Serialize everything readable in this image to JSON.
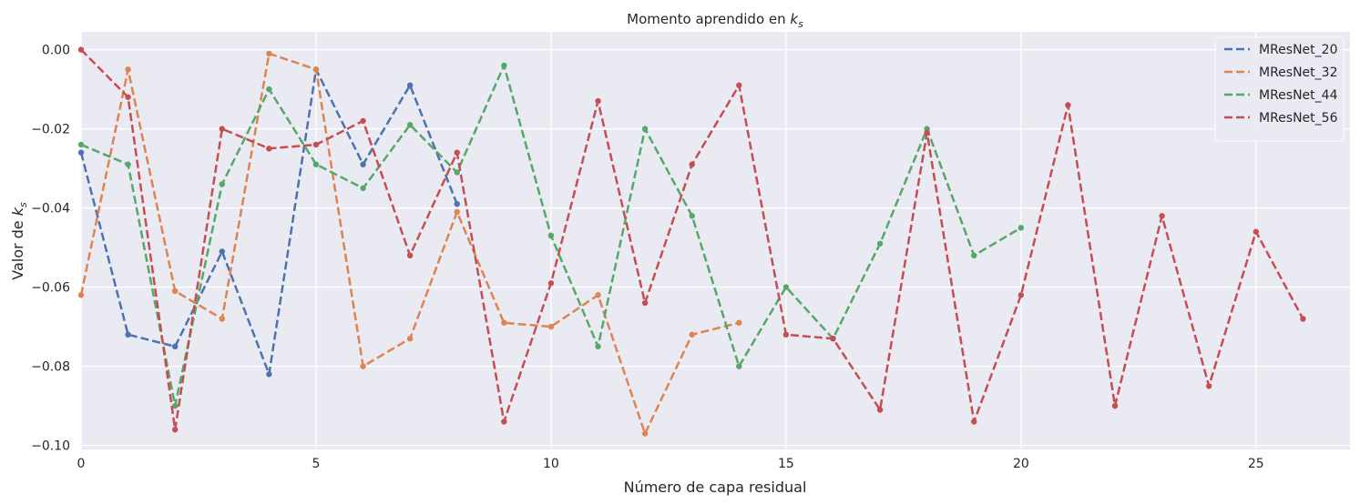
{
  "chart_data": {
    "type": "line",
    "title": "Momento aprendido en",
    "title_math": "k",
    "title_math_sub": "s",
    "xlabel": "Número de capa residual",
    "ylabel": "Valor de",
    "ylabel_math": "k",
    "ylabel_math_sub": "s",
    "xlim": [
      0,
      27
    ],
    "ylim": [
      -0.101,
      0.0045
    ],
    "xticks": [
      0,
      5,
      10,
      15,
      20,
      25
    ],
    "xtick_labels": [
      "0",
      "5",
      "10",
      "15",
      "20",
      "25"
    ],
    "yticks": [
      0.0,
      -0.02,
      -0.04,
      -0.06,
      -0.08,
      -0.1
    ],
    "ytick_labels": [
      "0.00",
      "−0.02",
      "−0.04",
      "−0.06",
      "−0.08",
      "−0.10"
    ],
    "grid": true,
    "legend_position": "top-right",
    "series": [
      {
        "name": "MResNet_20",
        "color": "#4c72b0",
        "x": [
          0,
          1,
          2,
          3,
          4,
          5,
          6,
          7,
          8
        ],
        "y": [
          -0.026,
          -0.072,
          -0.075,
          -0.051,
          -0.082,
          -0.005,
          -0.029,
          -0.009,
          -0.039
        ]
      },
      {
        "name": "MResNet_32",
        "color": "#dd8452",
        "x": [
          0,
          1,
          2,
          3,
          4,
          5,
          6,
          7,
          8,
          9,
          10,
          11,
          12,
          13,
          14
        ],
        "y": [
          -0.062,
          -0.005,
          -0.061,
          -0.068,
          -0.001,
          -0.005,
          -0.08,
          -0.073,
          -0.041,
          -0.069,
          -0.07,
          -0.062,
          -0.097,
          -0.072,
          -0.069
        ]
      },
      {
        "name": "MResNet_44",
        "color": "#55a868",
        "x": [
          0,
          1,
          2,
          3,
          4,
          5,
          6,
          7,
          8,
          9,
          10,
          11,
          12,
          13,
          14,
          15,
          16,
          17,
          18,
          19,
          20
        ],
        "y": [
          -0.024,
          -0.029,
          -0.09,
          -0.034,
          -0.01,
          -0.029,
          -0.035,
          -0.019,
          -0.031,
          -0.004,
          -0.047,
          -0.075,
          -0.02,
          -0.042,
          -0.08,
          -0.06,
          -0.073,
          -0.049,
          -0.02,
          -0.052,
          -0.045
        ]
      },
      {
        "name": "MResNet_56",
        "color": "#c44e52",
        "x": [
          0,
          1,
          2,
          3,
          4,
          5,
          6,
          7,
          8,
          9,
          10,
          11,
          12,
          13,
          14,
          15,
          16,
          17,
          18,
          19,
          20,
          21,
          22,
          23,
          24,
          25,
          26
        ],
        "y": [
          0.0,
          -0.012,
          -0.096,
          -0.02,
          -0.025,
          -0.024,
          -0.018,
          -0.052,
          -0.026,
          -0.094,
          -0.059,
          -0.013,
          -0.064,
          -0.029,
          -0.009,
          -0.072,
          -0.073,
          -0.091,
          -0.021,
          -0.094,
          -0.062,
          -0.014,
          -0.09,
          -0.042,
          -0.085,
          -0.046,
          -0.068
        ]
      }
    ]
  }
}
